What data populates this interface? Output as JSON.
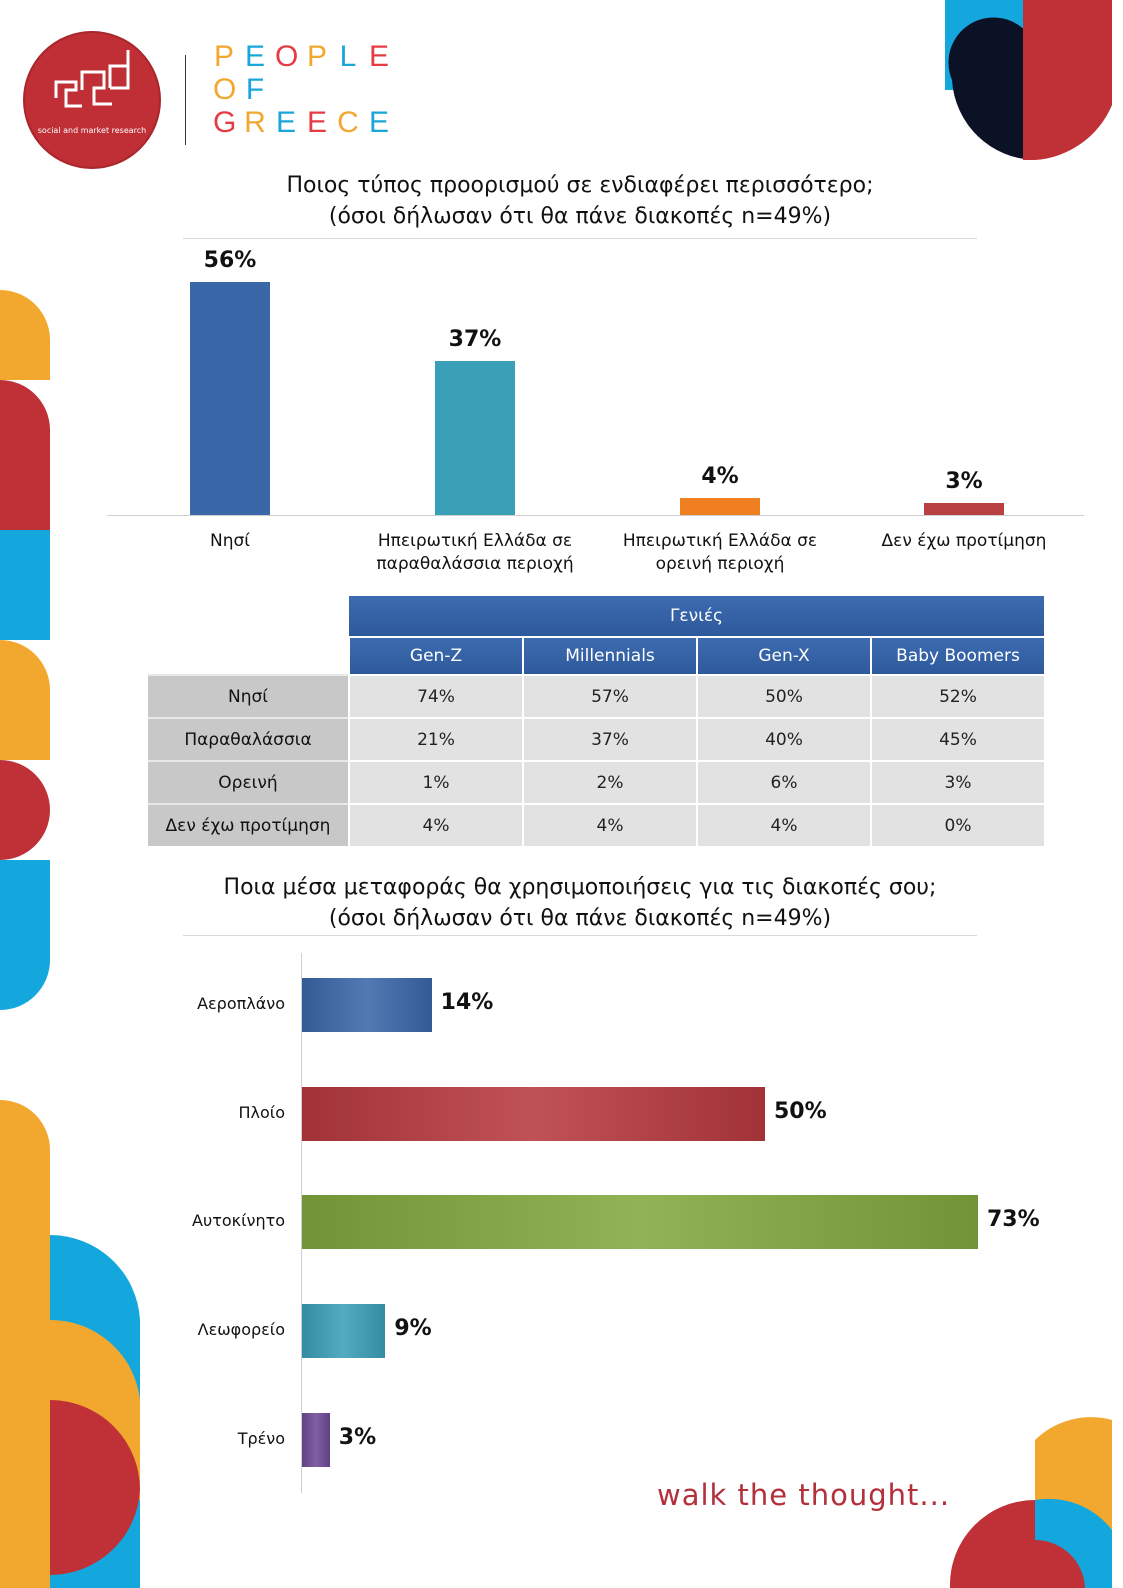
{
  "brand": {
    "logo_caption": "social and market research",
    "name_lines": [
      "PEOPLE",
      "OF",
      "GREECE"
    ],
    "letter_colors": {
      "PEOPLE": [
        "#f2a82f",
        "#1aa6d8",
        "#e53c44",
        "#f2a82f",
        "#1aa6d8",
        "#e53c44"
      ],
      "OF": [
        "#f2a82f",
        "#1aa6d8"
      ],
      "GREECE": [
        "#e53c44",
        "#f2a82f",
        "#1aa6d8",
        "#e53c44",
        "#f2a82f",
        "#1aa6d8"
      ]
    },
    "logo_color": "#bf2f35",
    "tagline": "walk the thought..."
  },
  "chart_data": [
    {
      "type": "bar",
      "title": "Ποιος τύπος προορισμού σε ενδιαφέρει περισσότερο;",
      "subtitle": "(όσοι δήλωσαν ότι θα πάνε διακοπές n=49%)",
      "categories": [
        "Νησί",
        "Ηπειρωτική Ελλάδα σε παραθαλάσσια περιοχή",
        "Ηπειρωτική Ελλάδα σε ορεινή περιοχή",
        "Δεν έχω προτίμηση"
      ],
      "values": [
        56,
        37,
        4,
        3
      ],
      "value_labels": [
        "56%",
        "37%",
        "4%",
        "3%"
      ],
      "colors": [
        "#3a67a8",
        "#3aa0b8",
        "#f07f22",
        "#b84040"
      ],
      "ylim": [
        0,
        56
      ],
      "grid": false
    },
    {
      "type": "table",
      "group_header": "Γενιές",
      "columns": [
        "Gen-Z",
        "Millennials",
        "Gen-X",
        "Baby Boomers"
      ],
      "rows": [
        {
          "label": "Νησί",
          "values": [
            "74%",
            "57%",
            "50%",
            "52%"
          ]
        },
        {
          "label": "Παραθαλάσσια",
          "values": [
            "21%",
            "37%",
            "40%",
            "45%"
          ]
        },
        {
          "label": "Ορεινή",
          "values": [
            "1%",
            "2%",
            "6%",
            "3%"
          ]
        },
        {
          "label": "Δεν έχω προτίμηση",
          "values": [
            "4%",
            "4%",
            "4%",
            "0%"
          ]
        }
      ]
    },
    {
      "type": "bar",
      "orientation": "horizontal",
      "title": "Ποια μέσα μεταφοράς θα χρησιμοποιήσεις για τις διακοπές σου;",
      "subtitle": "(όσοι δήλωσαν ότι θα πάνε διακοπές n=49%)",
      "categories": [
        "Αεροπλάνο",
        "Πλοίο",
        "Αυτοκίνητο",
        "Λεωφορείο",
        "Τρένο"
      ],
      "values": [
        14,
        50,
        73,
        9,
        3
      ],
      "value_labels": [
        "14%",
        "50%",
        "73%",
        "9%",
        "3%"
      ],
      "colors": [
        "#3a67a8",
        "#b73a3f",
        "#82a83e",
        "#3aa0b8",
        "#6e4a98"
      ],
      "xlim": [
        0,
        73
      ],
      "grid": false
    }
  ]
}
